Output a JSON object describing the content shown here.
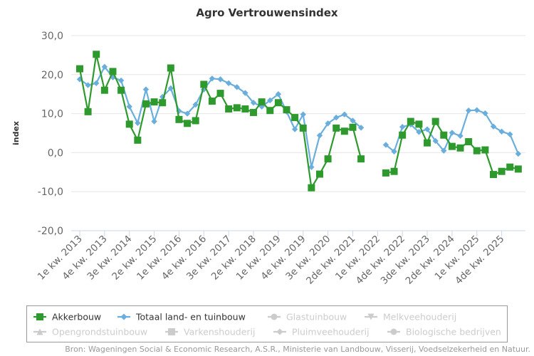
{
  "chart_data": {
    "type": "line",
    "title": "Agro Vertrouwensindex",
    "ylabel": "index",
    "ylim": [
      -20,
      30
    ],
    "yticks": [
      "30,0",
      "20,0",
      "10,0",
      "0,0",
      "-10,0",
      "-20,0"
    ],
    "x_tick_labels": [
      "1e kw. 2013",
      "4e kw. 2013",
      "3e kw. 2014",
      "2e kw. 2015",
      "1e kw. 2016",
      "4e kw. 2016",
      "3e kw. 2017",
      "2e kw. 2018",
      "1e kw. 2019",
      "4e kw. 2019",
      "3e kw. 2020",
      "2de kw. 2021",
      "1e kw. 2022",
      "4de kw. 2022",
      "3de kw. 2023",
      "2de kw. 2024",
      "1e kw. 2025",
      "4de kw. 2025"
    ],
    "grid": "horizontal",
    "legend_position": "bottom",
    "series": [
      {
        "name": "Akkerbouw",
        "color": "#2e9a2e",
        "marker": "square",
        "active": true,
        "values": [
          21.5,
          10.5,
          25.2,
          16,
          20.8,
          16,
          7.3,
          3.2,
          12.5,
          13,
          12.8,
          21.7,
          8.5,
          7.5,
          8.2,
          17.5,
          13.2,
          15.2,
          11.2,
          11.5,
          11.2,
          10.3,
          13,
          10.8,
          12.8,
          11,
          9,
          6.3,
          -9,
          -5.5,
          -1.6,
          6.3,
          5.5,
          6.5,
          -1.6,
          null,
          null,
          -5.2,
          -4.8,
          4.5,
          8,
          7.3,
          2.5,
          8,
          4.5,
          1.6,
          1.2,
          2.8,
          0.5,
          0.7,
          -5.6,
          -4.8,
          -3.7,
          -4.2
        ]
      },
      {
        "name": "Totaal land- en tuinbouw",
        "color": "#6aaedd",
        "marker": "diamond",
        "active": true,
        "values": [
          18.8,
          17.3,
          17.8,
          22,
          19.3,
          18.5,
          11.8,
          7.6,
          16.2,
          8,
          14.3,
          16.5,
          10.7,
          10,
          12.3,
          16.2,
          19,
          18.8,
          17.8,
          16.8,
          15.3,
          12.8,
          11.8,
          13.4,
          15,
          10.5,
          6,
          9.8,
          -3.7,
          4.4,
          7.5,
          9,
          9.8,
          8.2,
          6.4,
          null,
          null,
          2,
          0.3,
          6.6,
          7.2,
          5.3,
          6,
          3,
          0.5,
          5.1,
          4.3,
          10.8,
          10.9,
          10.1,
          6.7,
          5.4,
          4.7,
          -0.3
        ]
      },
      {
        "name": "Glastuinbouw",
        "color": "#cccccc",
        "marker": "circle",
        "active": false,
        "values": []
      },
      {
        "name": "Melkveehouderij",
        "color": "#cccccc",
        "marker": "triangle-down",
        "active": false,
        "values": []
      },
      {
        "name": "Opengrondstuinbouw",
        "color": "#cccccc",
        "marker": "triangle",
        "active": false,
        "values": []
      },
      {
        "name": "Varkenshouderij",
        "color": "#cccccc",
        "marker": "square",
        "active": false,
        "values": []
      },
      {
        "name": "Pluimveehouderij",
        "color": "#cccccc",
        "marker": "diamond",
        "active": false,
        "values": []
      },
      {
        "name": "Biologische bedrijven",
        "color": "#cccccc",
        "marker": "circle",
        "active": false,
        "values": []
      }
    ],
    "source": "Bron: Wageningen Social & Economic Research, A.S.R., Ministerie van Landbouw, Visserij, Voedselzekerheid en Natuur."
  }
}
